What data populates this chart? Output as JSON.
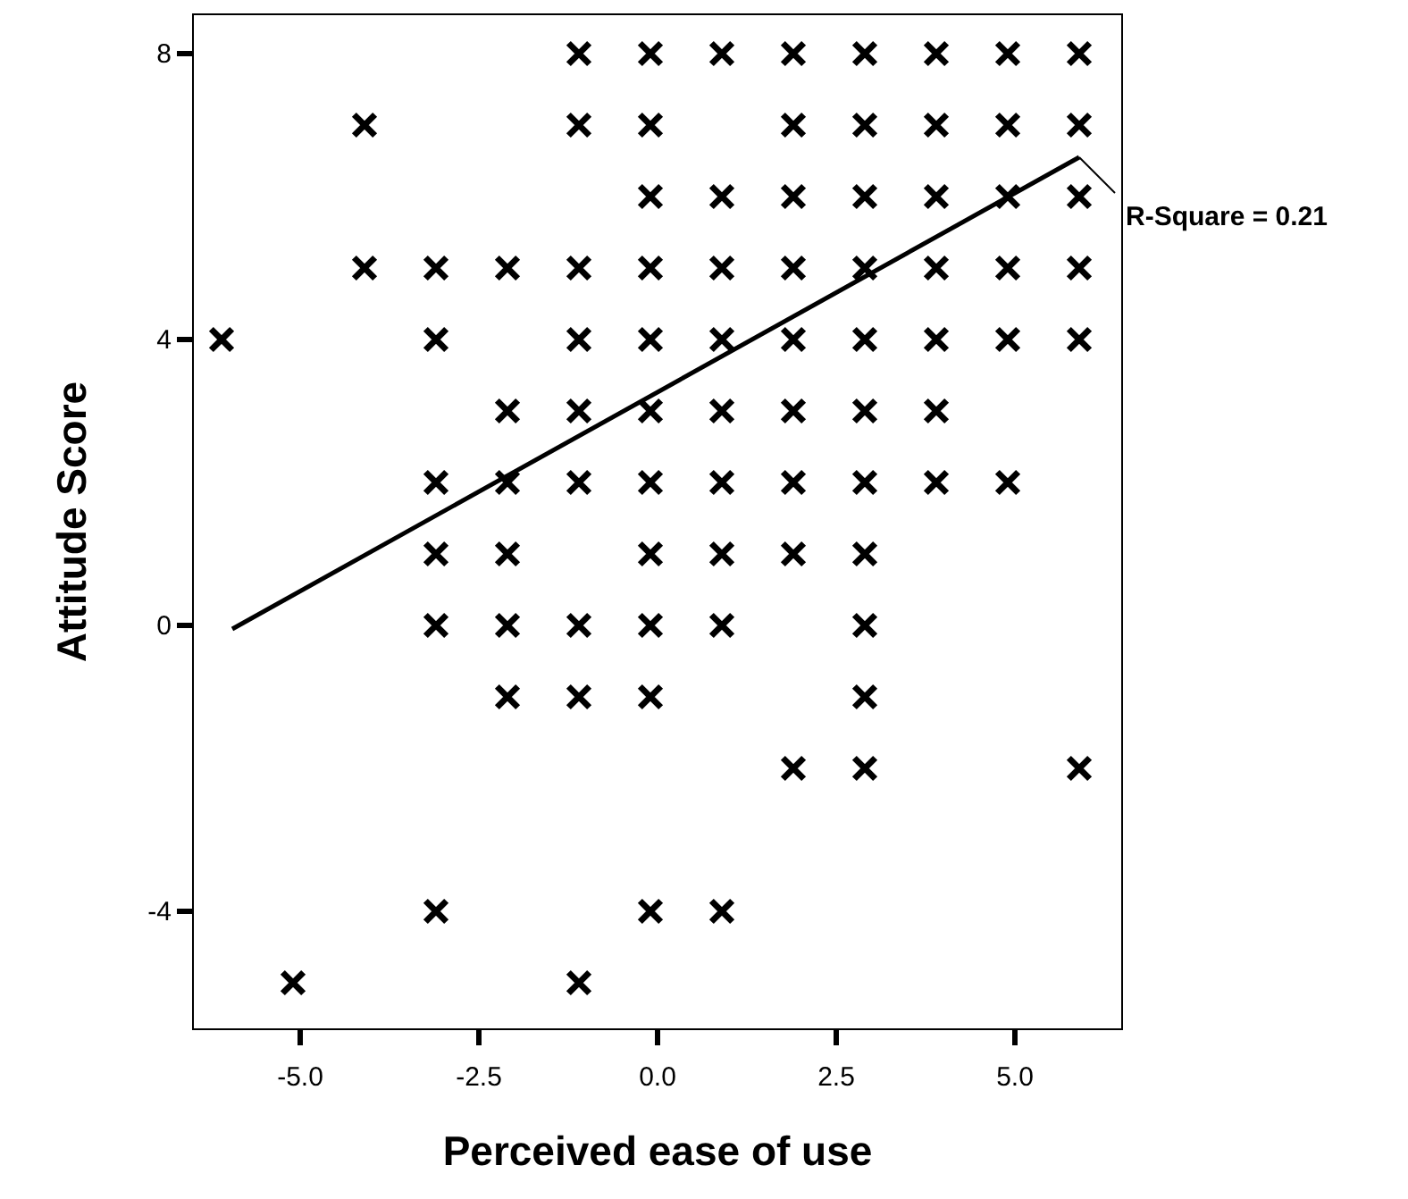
{
  "chart_data": {
    "type": "scatter",
    "xlabel": "Perceived ease of use",
    "ylabel": "Attitude Score",
    "xlim": [
      -6.5,
      6.5
    ],
    "ylim": [
      -5.65,
      8.55
    ],
    "xticks": [
      {
        "value": -5,
        "label": "-5.0"
      },
      {
        "value": -2.5,
        "label": "-2.5"
      },
      {
        "value": 0,
        "label": "0.0"
      },
      {
        "value": 2.5,
        "label": "2.5"
      },
      {
        "value": 5,
        "label": "5.0"
      }
    ],
    "yticks": [
      -4,
      0,
      4,
      8
    ],
    "grid": false,
    "annotations": [
      {
        "text": "R-Square = 0.21",
        "x": 5.9,
        "y": 6.55
      }
    ],
    "series": [
      {
        "color": "#000000",
        "marker": "cross",
        "x": [
          -1.1,
          -0.1,
          0.9,
          1.9,
          2.9,
          3.9,
          4.9,
          5.9,
          -4.1,
          -1.1,
          -0.1,
          1.9,
          2.9,
          3.9,
          4.9,
          5.9,
          -0.1,
          0.9,
          1.9,
          2.9,
          3.9,
          4.9,
          5.9,
          -4.1,
          -3.1,
          -2.1,
          -1.1,
          -0.1,
          0.9,
          1.9,
          2.9,
          3.9,
          4.9,
          5.9,
          -6.1,
          -3.1,
          -1.1,
          -0.1,
          0.9,
          1.9,
          2.9,
          3.9,
          4.9,
          5.9,
          -2.1,
          -1.1,
          -0.1,
          0.9,
          1.9,
          2.9,
          3.9,
          -3.1,
          -2.1,
          -1.1,
          -0.1,
          0.9,
          1.9,
          2.9,
          3.9,
          4.9,
          -3.1,
          -2.1,
          -0.1,
          0.9,
          1.9,
          2.9,
          -3.1,
          -2.1,
          -1.1,
          -0.1,
          0.9,
          2.9,
          -2.1,
          -1.1,
          -0.1,
          2.9,
          1.9,
          2.9,
          5.9,
          -3.1,
          -0.1,
          0.9,
          -5.1,
          -1.1
        ],
        "values": [
          8,
          8,
          8,
          8,
          8,
          8,
          8,
          8,
          7,
          7,
          7,
          7,
          7,
          7,
          7,
          7,
          6,
          6,
          6,
          6,
          6,
          6,
          6,
          5,
          5,
          5,
          5,
          5,
          5,
          5,
          5,
          5,
          5,
          5,
          4,
          4,
          4,
          4,
          4,
          4,
          4,
          4,
          4,
          4,
          3,
          3,
          3,
          3,
          3,
          3,
          3,
          2,
          2,
          2,
          2,
          2,
          2,
          2,
          2,
          2,
          1,
          1,
          1,
          1,
          1,
          1,
          0,
          0,
          0,
          0,
          0,
          0,
          -1,
          -1,
          -1,
          -1,
          -2,
          -2,
          -2,
          -4,
          -4,
          -4,
          -5,
          -5
        ]
      },
      {
        "type": "line",
        "color": "#000000",
        "marker": "none",
        "x": [
          -5.95,
          5.9
        ],
        "values": [
          -0.05,
          6.55
        ]
      }
    ]
  }
}
